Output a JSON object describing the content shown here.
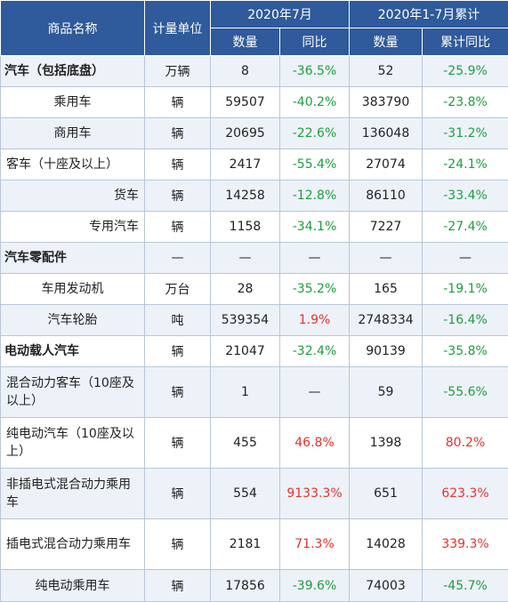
{
  "header": {
    "name": "商品名称",
    "unit": "计量单位",
    "month_group": "2020年7月",
    "cum_group": "2020年1-7月累计",
    "qty": "数量",
    "yoy": "同比",
    "cum_qty": "数量",
    "cum_yoy": "累计同比"
  },
  "rows": [
    {
      "name": "汽车（包括底盘）",
      "unit": "万辆",
      "qty": "8",
      "yoy": "-36.5%",
      "cum_qty": "52",
      "cum_yoy": "-25.9%"
    },
    {
      "name": "乘用车",
      "unit": "辆",
      "qty": "59507",
      "yoy": "-40.2%",
      "cum_qty": "383790",
      "cum_yoy": "-23.8%"
    },
    {
      "name": "商用车",
      "unit": "辆",
      "qty": "20695",
      "yoy": "-22.6%",
      "cum_qty": "136048",
      "cum_yoy": "-31.2%"
    },
    {
      "name": "客车（十座及以上）",
      "unit": "辆",
      "qty": "2417",
      "yoy": "-55.4%",
      "cum_qty": "27074",
      "cum_yoy": "-24.1%"
    },
    {
      "name": "货车",
      "unit": "辆",
      "qty": "14258",
      "yoy": "-12.8%",
      "cum_qty": "86110",
      "cum_yoy": "-33.4%"
    },
    {
      "name": "专用汽车",
      "unit": "辆",
      "qty": "1158",
      "yoy": "-34.1%",
      "cum_qty": "7227",
      "cum_yoy": "-27.4%"
    },
    {
      "name": "汽车零配件",
      "unit": "—",
      "qty": "—",
      "yoy": "—",
      "cum_qty": "—",
      "cum_yoy": "—"
    },
    {
      "name": "车用发动机",
      "unit": "万台",
      "qty": "28",
      "yoy": "-35.2%",
      "cum_qty": "165",
      "cum_yoy": "-19.1%"
    },
    {
      "name": "汽车轮胎",
      "unit": "吨",
      "qty": "539354",
      "yoy": "1.9%",
      "cum_qty": "2748334",
      "cum_yoy": "-16.4%"
    },
    {
      "name": "电动载人汽车",
      "unit": "辆",
      "qty": "21047",
      "yoy": "-32.4%",
      "cum_qty": "90139",
      "cum_yoy": "-35.8%"
    },
    {
      "name": "混合动力客车（10座及以上）",
      "unit": "辆",
      "qty": "1",
      "yoy": "—",
      "cum_qty": "59",
      "cum_yoy": "-55.6%"
    },
    {
      "name": "纯电动汽车（10座及以上）",
      "unit": "辆",
      "qty": "455",
      "yoy": "46.8%",
      "cum_qty": "1398",
      "cum_yoy": "80.2%"
    },
    {
      "name": "非插电式混合动力乘用车",
      "unit": "辆",
      "qty": "554",
      "yoy": "9133.3%",
      "cum_qty": "651",
      "cum_yoy": "623.3%"
    },
    {
      "name": "插电式混合动力乘用车",
      "unit": "辆",
      "qty": "2181",
      "yoy": "71.3%",
      "cum_qty": "14028",
      "cum_yoy": "339.3%"
    },
    {
      "name": "纯电动乘用车",
      "unit": "辆",
      "qty": "17856",
      "yoy": "-39.6%",
      "cum_qty": "74003",
      "cum_yoy": "-45.7%"
    }
  ],
  "colors": {
    "header_bg": "#2f5a9b",
    "positive": "#e8312b",
    "negative": "#1f9e3e",
    "alt_row": "#edf2f9"
  }
}
